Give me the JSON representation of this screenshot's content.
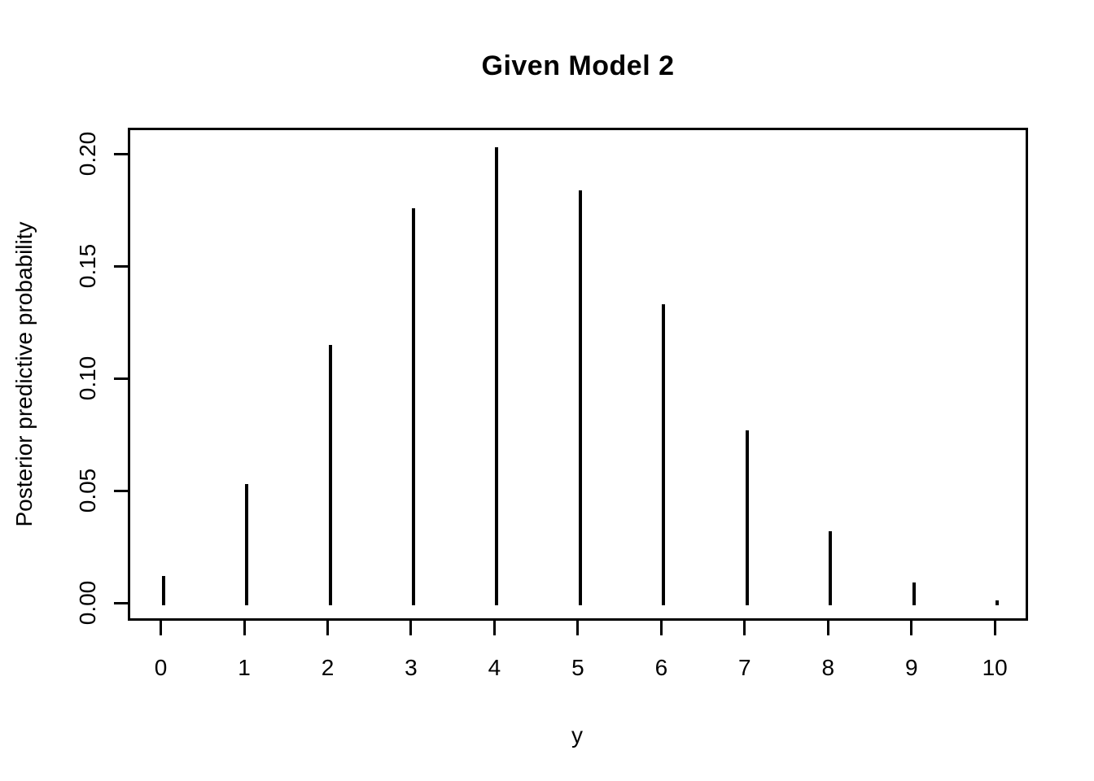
{
  "figure": {
    "background_color": "#ffffff",
    "foreground_color": "#000000"
  },
  "chart_data": {
    "type": "bar",
    "subtype": "spike-plot-type-h",
    "title": "Given Model 2",
    "xlabel": "y",
    "ylabel": "Posterior predictive probability",
    "x": [
      0,
      1,
      2,
      3,
      4,
      5,
      6,
      7,
      8,
      9,
      10
    ],
    "values": [
      0.013,
      0.054,
      0.116,
      0.177,
      0.204,
      0.185,
      0.134,
      0.078,
      0.033,
      0.01,
      0.002
    ],
    "x_tick_labels": [
      "0",
      "1",
      "2",
      "3",
      "4",
      "5",
      "6",
      "7",
      "8",
      "9",
      "10"
    ],
    "y_tick_labels": [
      "0.00",
      "0.05",
      "0.10",
      "0.15",
      "0.20"
    ],
    "y_tick_values": [
      0.0,
      0.05,
      0.1,
      0.15,
      0.2
    ],
    "xlim": [
      -0.4,
      10.4
    ],
    "ylim": [
      -0.0082,
      0.2122
    ],
    "grid": false,
    "legend": "none",
    "series_color": "#000000"
  }
}
